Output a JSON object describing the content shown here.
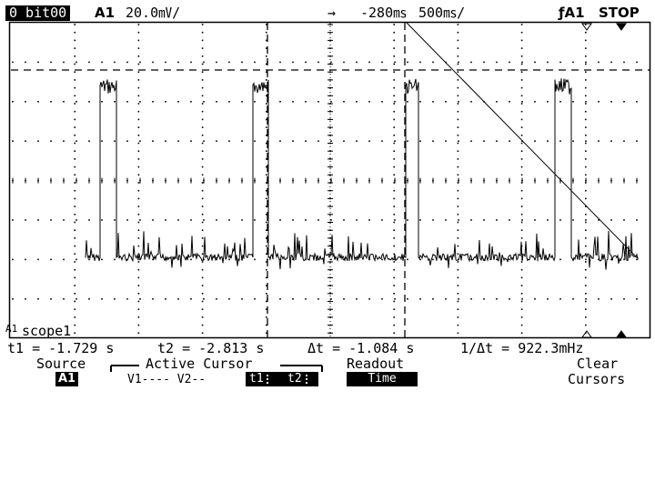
{
  "header": {
    "channel_tag": "0 bit00",
    "channel_name": "A1",
    "vertical_scale": "20.0㎷/",
    "trigger_arrow": "→",
    "time_offset": "-280㎳",
    "time_scale": "500㎳/",
    "trigger_source": "ƒA1",
    "run_state": "STOP"
  },
  "waveform": {
    "label_marker": "A1",
    "label_name": "scope1"
  },
  "readout": {
    "t1": "t1 = -1.729 s",
    "t2": "t2 = -2.813 s",
    "dt": "Δt = -1.084 s",
    "inv_dt": "1/Δt = 922.3mHz"
  },
  "softkeys": {
    "source_label": "Source",
    "source_value": "A1",
    "active_cursor_label": "Active Cursor",
    "v_options": "V1---- V2--",
    "t1": "t1",
    "t2": "t2",
    "readout_label": "Readout",
    "readout_value": "Time",
    "clear_line1": "Clear",
    "clear_line2": "Cursors"
  }
}
